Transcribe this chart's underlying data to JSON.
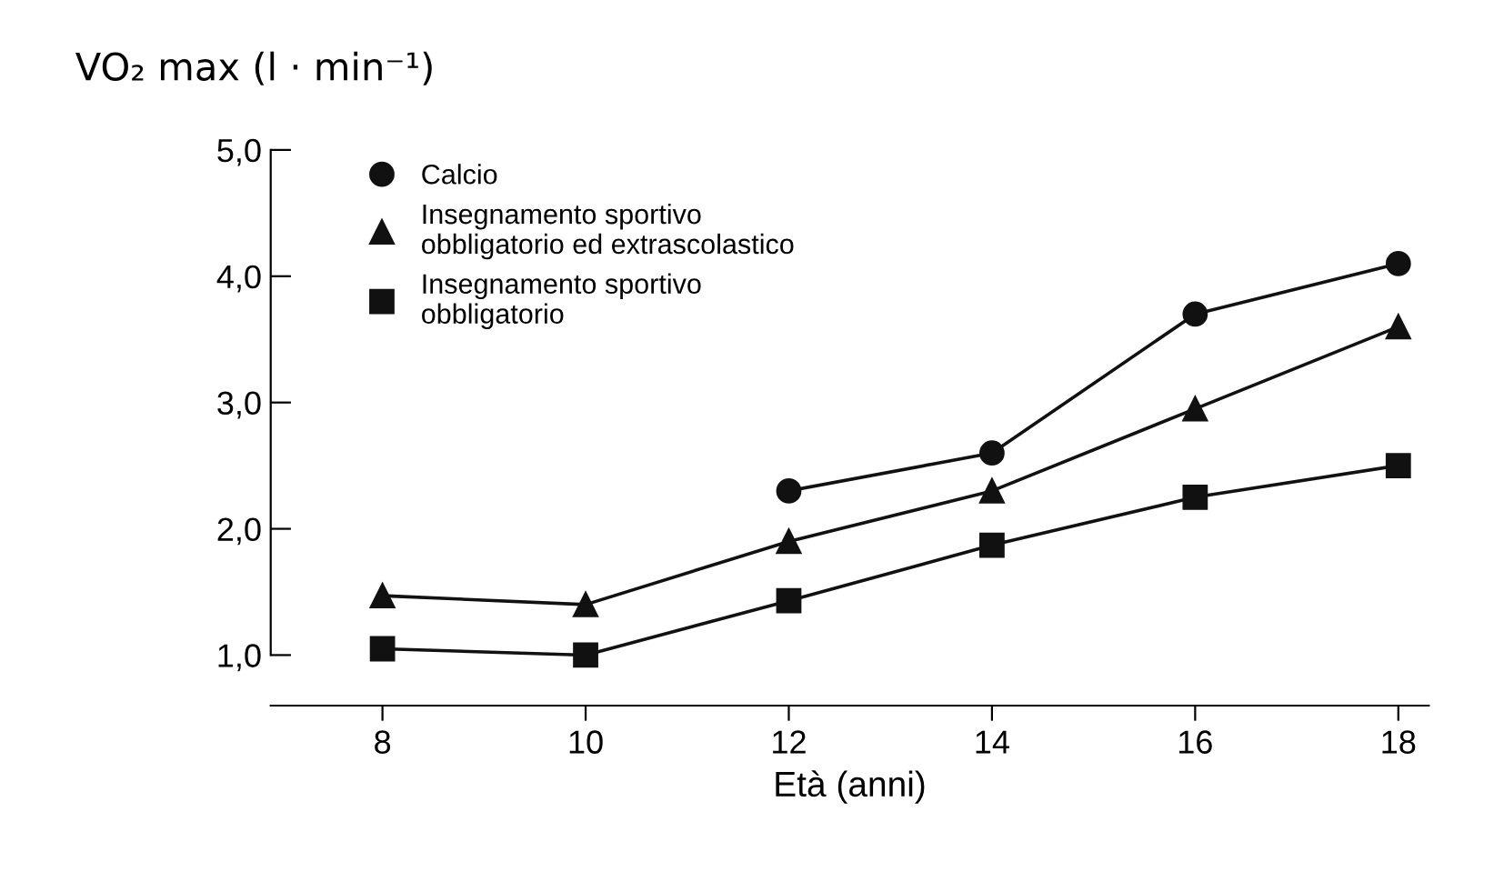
{
  "chart_data": {
    "type": "line",
    "ylabel": "VO₂ max (l · min⁻¹)",
    "xlabel": "Età (anni)",
    "x": [
      8,
      10,
      12,
      14,
      16,
      18
    ],
    "series": [
      {
        "name": "Calcio",
        "color": "#111111",
        "marker": "circle",
        "values": [
          null,
          null,
          2.3,
          2.6,
          3.7,
          4.1
        ]
      },
      {
        "name": "Insegnamento sportivo\nobbligatorio ed extrascolastico",
        "color": "#111111",
        "marker": "triangle",
        "values": [
          1.47,
          1.4,
          1.9,
          2.3,
          2.95,
          3.6
        ]
      },
      {
        "name": "Insegnamento sportivo\nobbligatorio",
        "color": "#111111",
        "marker": "square",
        "values": [
          1.05,
          1.0,
          1.43,
          1.87,
          2.25,
          2.5
        ]
      }
    ],
    "xlim": [
      6.9,
      18.3
    ],
    "xticks": [
      8,
      10,
      12,
      14,
      16,
      18
    ],
    "ylim": [
      0.6,
      5.0
    ],
    "yticks": [
      {
        "value": 1,
        "label": "1,0"
      },
      {
        "value": 2,
        "label": "2,0"
      },
      {
        "value": 3,
        "label": "3,0"
      },
      {
        "value": 4,
        "label": "4,0"
      },
      {
        "value": 5,
        "label": "5,0"
      }
    ],
    "grid": false,
    "legend": "top left",
    "line_style": "solid"
  }
}
